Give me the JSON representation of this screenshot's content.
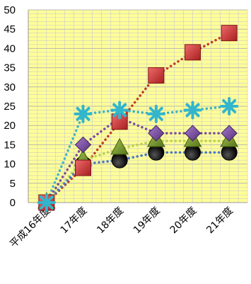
{
  "chart_data": {
    "type": "line",
    "categories": [
      "平成16年度",
      "17年度",
      "18年度",
      "19年度",
      "20年度",
      "21年度"
    ],
    "ylim": [
      0,
      50
    ],
    "yticks": [
      0,
      5,
      10,
      15,
      20,
      25,
      30,
      35,
      40,
      45,
      50
    ],
    "grid": true,
    "legend": "none",
    "plot_background": "#ffff99",
    "gridline_color": "#c9c9c9",
    "series": [
      {
        "marker": "square",
        "color": "#cc3333",
        "line_color": "#c0392b",
        "values": [
          0,
          9,
          21,
          33,
          39,
          44
        ]
      },
      {
        "marker": "asterisk",
        "color": "#33b5cc",
        "line_color": "#3bb3c8",
        "values": [
          0,
          23,
          24,
          23,
          24,
          25
        ]
      },
      {
        "marker": "diamond",
        "color": "#7a4aa0",
        "line_color": "#7a4aa0",
        "values": [
          0,
          15,
          22,
          18,
          18,
          18
        ]
      },
      {
        "marker": "triangle",
        "color": "#7a9a32",
        "line_color": "#b8d04a",
        "values": [
          0,
          11,
          14,
          16,
          16,
          16
        ]
      },
      {
        "marker": "circle",
        "color": "#000000",
        "line_color": "#4a78c8",
        "values": [
          0,
          10,
          11,
          13,
          13,
          13
        ]
      }
    ]
  }
}
